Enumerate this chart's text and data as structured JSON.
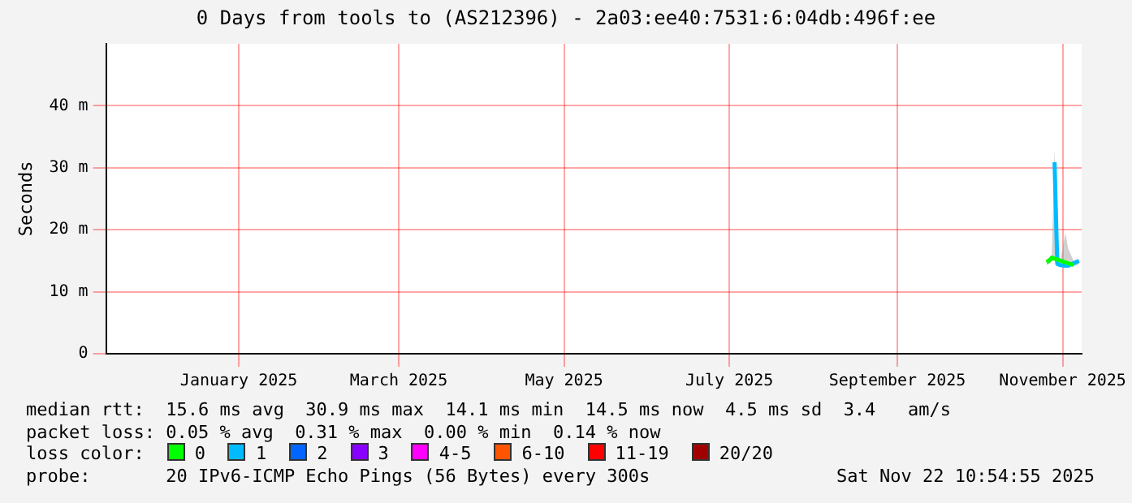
{
  "chart_data": {
    "type": "line",
    "title": "0 Days from tools to (AS212396) - 2a03:ee40:7531:6:04db:496f:ee",
    "ylabel": "Seconds",
    "x": [
      "2025-11-09",
      "2025-11-10",
      "2025-11-11",
      "2025-11-12",
      "2025-11-13",
      "2025-11-14",
      "2025-11-16",
      "2025-11-17",
      "2025-11-19",
      "2025-11-21"
    ],
    "xlim": [
      "2024-11-27",
      "2025-11-22"
    ],
    "xticks": [
      {
        "value": "2025-01-15",
        "label": "January 2025"
      },
      {
        "value": "2025-03-15",
        "label": "March 2025"
      },
      {
        "value": "2025-05-15",
        "label": "May 2025"
      },
      {
        "value": "2025-07-15",
        "label": "July 2025"
      },
      {
        "value": "2025-09-15",
        "label": "September 2025"
      },
      {
        "value": "2025-11-15",
        "label": "November 2025"
      }
    ],
    "ylim": [
      0,
      50
    ],
    "yticks": [
      0,
      {
        "value": 10,
        "label": "10 m"
      },
      {
        "value": 20,
        "label": "20 m"
      },
      {
        "value": 30,
        "label": "30 m"
      },
      {
        "value": 40,
        "label": "40 m"
      }
    ],
    "grid": true,
    "legend": "bottom",
    "legend_title": "loss color:",
    "marker": "none",
    "series": [
      {
        "name": "0",
        "color": "#00ff00",
        "values": [
          14.8,
          15.0,
          15.5,
          null,
          null,
          null,
          null,
          null,
          14.3,
          null
        ]
      },
      {
        "name": "1",
        "color": "#00bbff",
        "values": [
          null,
          null,
          null,
          30.9,
          14.5,
          14.3,
          14.2,
          14.2,
          null,
          15.0
        ],
        "lower": [
          14.3,
          14.5,
          15.0,
          15.0,
          14.2,
          14.1,
          14.1,
          14.1,
          14.1,
          14.4
        ],
        "upper": [
          15.2,
          15.5,
          16.0,
          33.0,
          20.0,
          14.8,
          19.5,
          17.0,
          15.0,
          15.2
        ]
      },
      {
        "name": "2",
        "color": "#0066ff",
        "values": [
          null,
          null,
          null,
          null,
          null,
          null,
          null,
          null,
          null,
          null
        ]
      },
      {
        "name": "3",
        "color": "#8800ff",
        "values": [
          null,
          null,
          null,
          null,
          null,
          null,
          null,
          null,
          null,
          null
        ]
      },
      {
        "name": "4-5",
        "color": "#ff00ff",
        "values": [
          null,
          null,
          null,
          null,
          null,
          null,
          null,
          null,
          null,
          null
        ]
      },
      {
        "name": "6-10",
        "color": "#ff5500",
        "values": [
          null,
          null,
          null,
          null,
          null,
          null,
          null,
          null,
          null,
          null
        ]
      },
      {
        "name": "11-19",
        "color": "#ff0000",
        "values": [
          null,
          null,
          null,
          null,
          null,
          null,
          null,
          null,
          null,
          null
        ]
      },
      {
        "name": "20/20",
        "color": "#a10000",
        "values": [
          null,
          null,
          null,
          null,
          null,
          null,
          null,
          null,
          null,
          null
        ]
      }
    ],
    "annotations": [
      "median rtt:  15.6 ms avg  30.9 ms max  14.1 ms min  14.5 ms now  4.5 ms sd  3.4   am/s",
      "packet loss: 0.05 % avg  0.31 % max  0.00 % min  0.14 % now",
      "probe:       20 IPv6-ICMP Echo Pings (56 Bytes) every 300s",
      "Sat Nov 22 10:54:55 2025"
    ]
  }
}
